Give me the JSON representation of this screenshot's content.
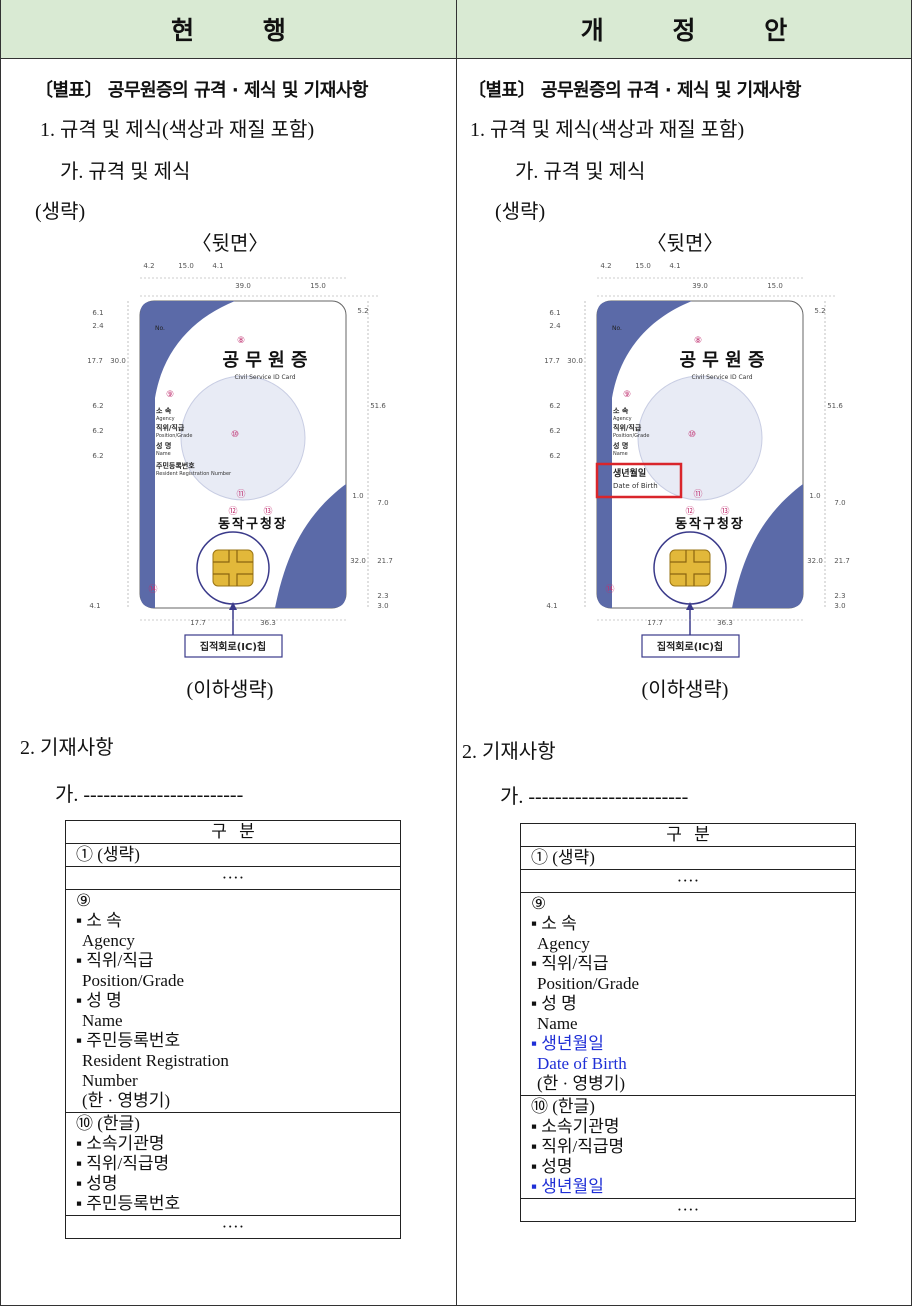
{
  "header": {
    "left": "현 행",
    "right": "개 정 안"
  },
  "columns": [
    {
      "section_title": "〔별표〕 공무원증의 규격 · 제식 및 기재사항",
      "item1": "1. 규격 및 제식(색상과 재질 포함)",
      "item1a": "가. 규격 및 제식",
      "omitted": "(생략)",
      "back_label": "〈뒷면〉",
      "card": {
        "no": "No.",
        "markers": [
          "⑧",
          "⑨",
          "⑩",
          "⑪",
          "⑫",
          "⑬",
          "⑭"
        ],
        "title": "공 무 원 증",
        "subtitle": "Civil Service ID Card",
        "fields": [
          {
            "label": "소 속",
            "sub": "Agency"
          },
          {
            "label": "직위/직급",
            "sub": "Position/Grade"
          },
          {
            "label": "성 명",
            "sub": "Name"
          },
          {
            "label": "주민등록번호",
            "sub": "Resident Registration Number"
          }
        ],
        "issuer": "동작구청장",
        "chip_label": "집적회로(IC)칩",
        "dims": [
          "4.2",
          "15.0",
          "4.1",
          "39.0",
          "15.0",
          "6.1",
          "2.4",
          "17.7",
          "30.0",
          "6.2",
          "6.2",
          "6.2",
          "5.2",
          "51.6",
          "1.0",
          "7.0",
          "32.0",
          "21.7",
          "2.3",
          "3.0",
          "4.1",
          "17.7",
          "36.3"
        ]
      },
      "after_card": "(이하생략)",
      "item2": "2. 기재사항",
      "item2a": "가. ------------------------",
      "table": {
        "header": "구 분",
        "rows": [
          [
            "① (생략)"
          ],
          [
            "····"
          ],
          [
            "⑨",
            "▪ 소 속",
            "Agency",
            "▪ 직위/직급",
            "Position/Grade",
            "▪ 성 명",
            "Name",
            "▪ 주민등록번호",
            "Resident Registration",
            "Number",
            "(한 · 영병기)"
          ],
          [
            "⑩ (한글)",
            "▪ 소속기관명",
            "▪ 직위/직급명",
            "▪ 성명",
            "▪ 주민등록번호"
          ],
          [
            "····"
          ]
        ]
      }
    },
    {
      "section_title": "〔별표〕 공무원증의 규격 · 제식 및 기재사항",
      "item1": "1. 규격 및 제식(색상과 재질 포함)",
      "item1a": "가. 규격 및 제식",
      "omitted": "(생략)",
      "back_label": "〈뒷면〉",
      "card": {
        "no": "No.",
        "markers": [
          "⑧",
          "⑨",
          "⑩",
          "⑪",
          "⑫",
          "⑬",
          "⑭"
        ],
        "title": "공 무 원 증",
        "subtitle": "Civil Service ID Card",
        "fields": [
          {
            "label": "소 속",
            "sub": "Agency"
          },
          {
            "label": "직위/직급",
            "sub": "Position/Grade"
          },
          {
            "label": "성 명",
            "sub": "Name"
          },
          {
            "label": "생년월일",
            "sub": "Date of Birth",
            "box_color": "#d9252b"
          }
        ],
        "issuer": "동작구청장",
        "chip_label": "집적회로(IC)칩",
        "dims": [
          "4.2",
          "15.0",
          "4.1",
          "39.0",
          "15.0",
          "6.1",
          "2.4",
          "17.7",
          "30.0",
          "6.2",
          "6.2",
          "6.2",
          "5.2",
          "51.6",
          "1.0",
          "7.0",
          "32.0",
          "21.7",
          "2.3",
          "3.0",
          "4.1",
          "17.7",
          "36.3"
        ]
      },
      "after_card": "(이하생략)",
      "item2": "2. 기재사항",
      "item2a": "가. ------------------------",
      "table": {
        "header": "구 분",
        "rows": [
          [
            "① (생략)"
          ],
          [
            "····"
          ],
          [
            "⑨",
            "▪ 소 속",
            "Agency",
            "▪ 직위/직급",
            "Position/Grade",
            "▪ 성 명",
            "Name",
            {
              "text": "▪ 생년월일",
              "color": "#1f2fd6"
            },
            {
              "text": "Date of Birth",
              "color": "#1f2fd6"
            },
            "(한 · 영병기)"
          ],
          [
            "⑩ (한글)",
            "▪ 소속기관명",
            "▪ 직위/직급명",
            "▪ 성명",
            {
              "text": "▪ 생년월일",
              "color": "#1f2fd6"
            }
          ],
          [
            "····"
          ]
        ]
      }
    }
  ]
}
